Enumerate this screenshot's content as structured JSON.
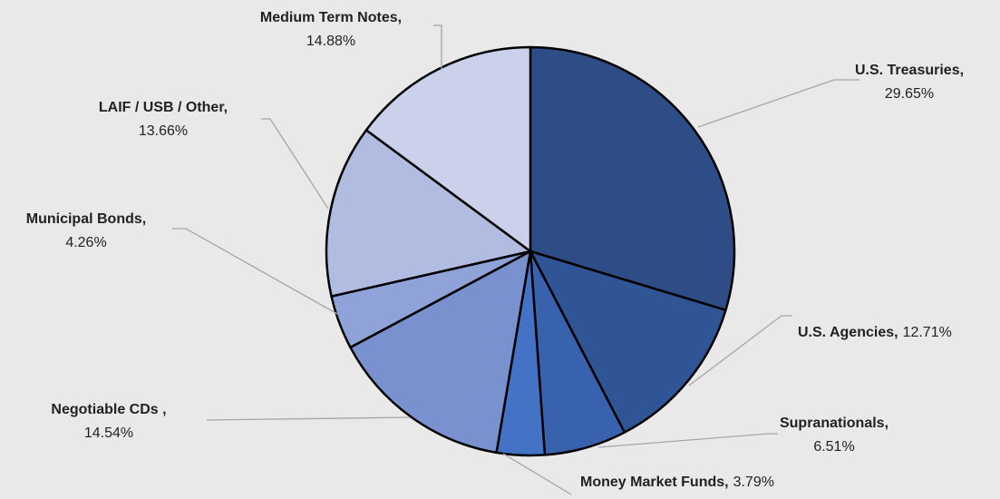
{
  "chart_data": {
    "type": "pie",
    "categories": [
      "U.S. Treasuries,",
      "U.S. Agencies,",
      "Supranationals,",
      "Money Market Funds,",
      "Negotiable CDs ,",
      "Municipal Bonds,",
      "LAIF / USB / Other,",
      "Medium Term Notes,"
    ],
    "values": [
      29.65,
      12.71,
      6.51,
      3.79,
      14.54,
      4.26,
      13.66,
      14.88
    ],
    "value_labels": [
      "29.65%",
      "12.71%",
      "6.51%",
      "3.79%",
      "14.54%",
      "4.26%",
      "13.66%",
      "14.88%"
    ],
    "colors": [
      "#2e4c85",
      "#2f5597",
      "#3962ae",
      "#4472c4",
      "#7a91cf",
      "#8fa3d8",
      "#b0bde1",
      "#cbd1eb"
    ]
  }
}
